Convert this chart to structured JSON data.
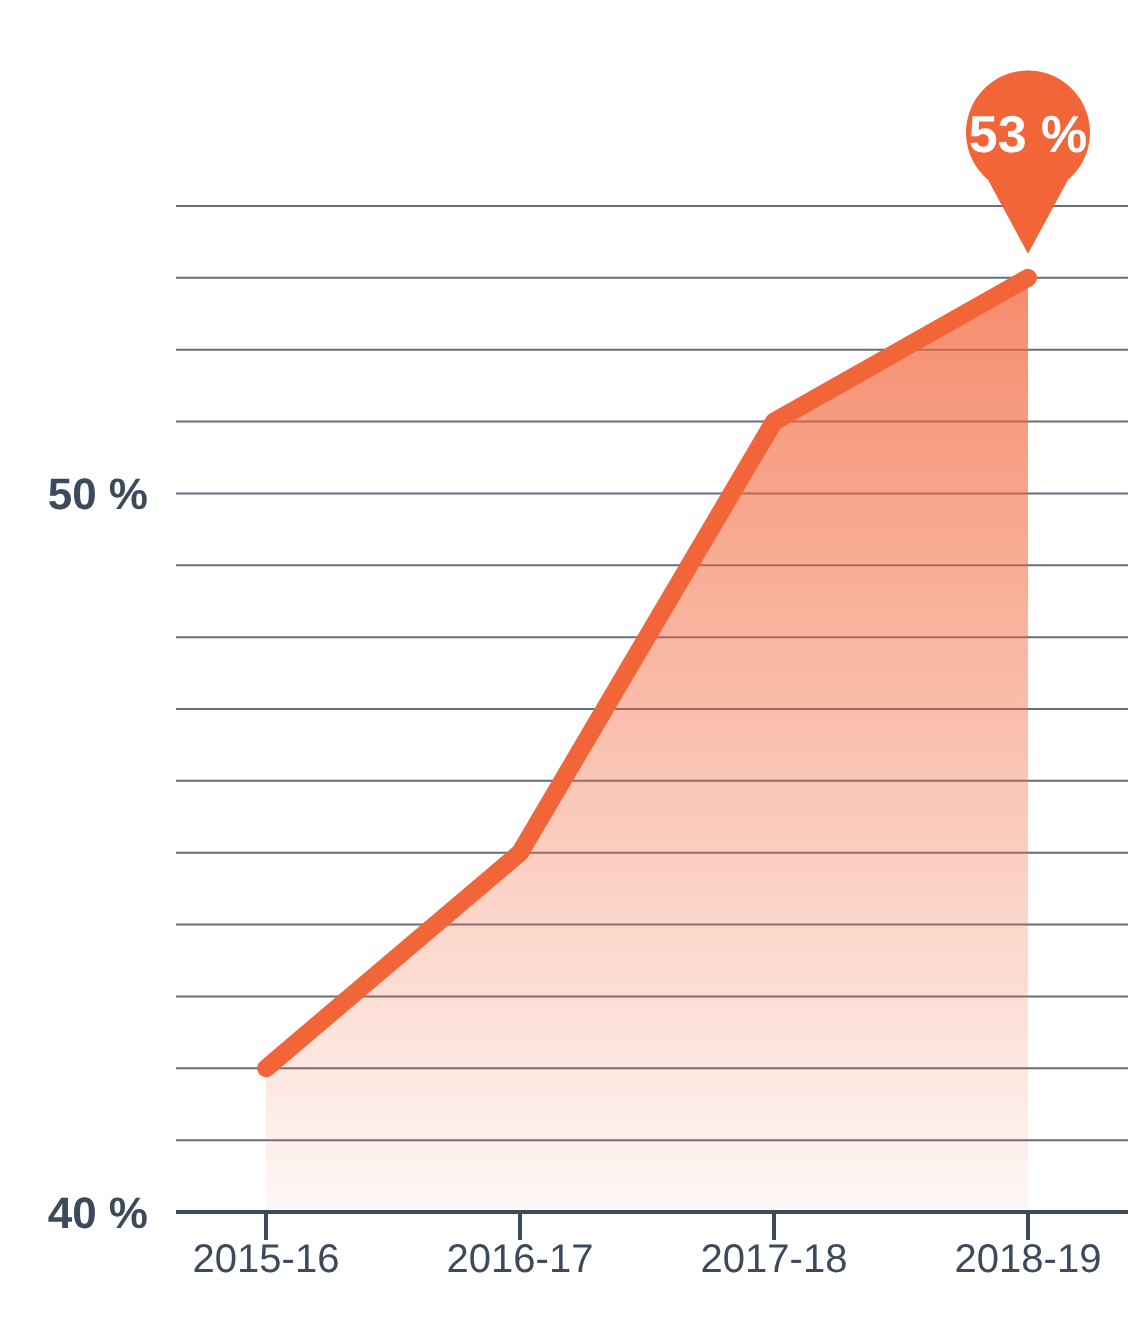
{
  "chart_data": {
    "type": "area",
    "categories": [
      "2015-16",
      "2016-17",
      "2017-18",
      "2018-19"
    ],
    "series": [
      {
        "color": "#f26539",
        "values": [
          42,
          45,
          51,
          53
        ],
        "value_labels": [
          null,
          null,
          null,
          "53 %"
        ]
      }
    ],
    "ylim": [
      40,
      54
    ],
    "yticks": [
      {
        "value": 40,
        "label": "40 %"
      },
      {
        "value": 41,
        "label": null
      },
      {
        "value": 42,
        "label": null
      },
      {
        "value": 43,
        "label": null
      },
      {
        "value": 44,
        "label": null
      },
      {
        "value": 45,
        "label": null
      },
      {
        "value": 46,
        "label": null
      },
      {
        "value": 47,
        "label": null
      },
      {
        "value": 48,
        "label": null
      },
      {
        "value": 49,
        "label": null
      },
      {
        "value": 50,
        "label": "50 %"
      },
      {
        "value": 51,
        "label": null
      },
      {
        "value": 52,
        "label": null
      },
      {
        "value": 53,
        "label": null
      },
      {
        "value": 54,
        "label": null
      }
    ],
    "grid": "y",
    "legend": false,
    "marker": "none",
    "line_style": "solid"
  }
}
